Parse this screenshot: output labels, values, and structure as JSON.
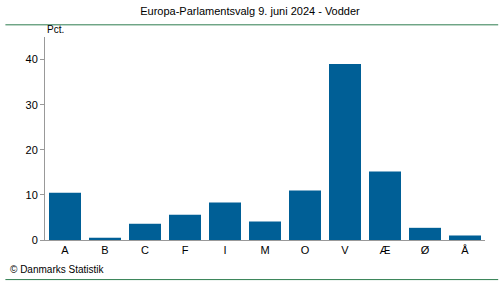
{
  "chart_data": {
    "type": "bar",
    "title": "Europa-Parlamentsvalg 9. juni 2024 - Vodder",
    "y_label": "Pct.",
    "source": "© Danmarks Statistik",
    "categories": [
      "A",
      "B",
      "C",
      "F",
      "I",
      "M",
      "O",
      "V",
      "Æ",
      "Ø",
      "Å"
    ],
    "values": [
      10.5,
      0.5,
      3.6,
      5.6,
      8.3,
      4.1,
      11.0,
      39.0,
      15.2,
      2.7,
      1.0
    ],
    "color": "#005f96",
    "ylim": [
      0,
      45
    ],
    "yticks": [
      0,
      10,
      20,
      30,
      40
    ],
    "grid": false
  }
}
